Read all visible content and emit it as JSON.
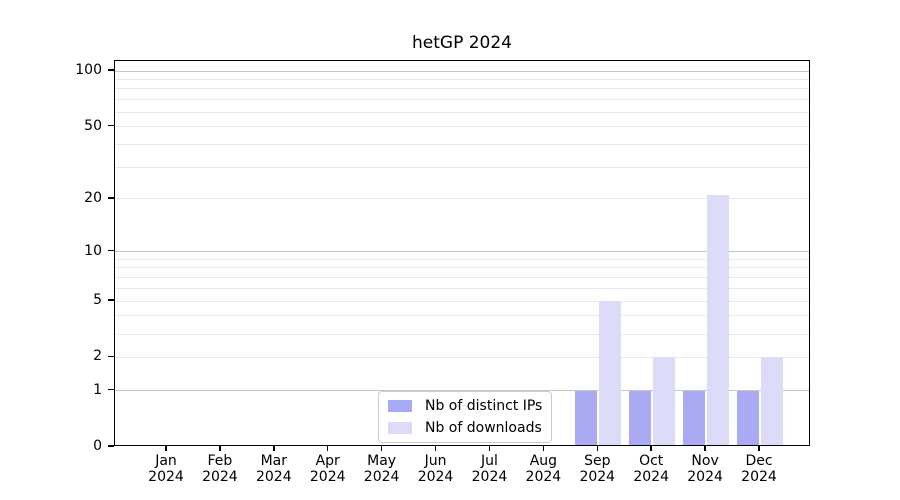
{
  "chart_data": {
    "type": "bar",
    "title": "hetGP 2024",
    "x_categories": [
      "Jan",
      "Feb",
      "Mar",
      "Apr",
      "May",
      "Jun",
      "Jul",
      "Aug",
      "Sep",
      "Oct",
      "Nov",
      "Dec"
    ],
    "x_sub_label": "2024",
    "series": [
      {
        "name": "Nb of distinct IPs",
        "color": "#a9a9f4",
        "values": [
          0,
          0,
          0,
          0,
          0,
          0,
          0,
          0,
          1,
          1,
          1,
          1
        ]
      },
      {
        "name": "Nb of downloads",
        "color": "#dcdcf8",
        "values": [
          0,
          0,
          0,
          0,
          0,
          0,
          0,
          0,
          5,
          2,
          21,
          2
        ]
      }
    ],
    "y_axis": {
      "scale": "log1p",
      "tick_values": [
        0,
        1,
        2,
        5,
        10,
        20,
        50,
        100
      ],
      "tick_labels": [
        "0",
        "1",
        "2",
        "5",
        "10",
        "20",
        "50",
        "100"
      ],
      "major_gridlines": [
        1,
        10,
        100
      ],
      "minor_gridlines": [
        2,
        3,
        4,
        5,
        6,
        7,
        8,
        9,
        20,
        30,
        40,
        50,
        60,
        70,
        80,
        90
      ],
      "ylim": [
        0,
        113
      ]
    },
    "grid": "horizontal",
    "legend_position": "lower center-left",
    "bar_layout": "paired side-by-side per month"
  },
  "colors": {
    "background": "#ffffff",
    "axis": "#000000",
    "major_grid": "#c6c6c6",
    "minor_grid": "#e9e9e9",
    "legend_border": "#cccccc",
    "text": "#000000"
  }
}
